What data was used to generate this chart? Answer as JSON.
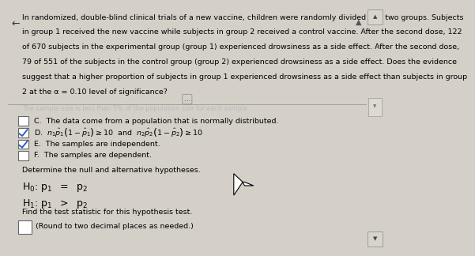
{
  "bg_color": "#d4d0c8",
  "panel_bg": "#e8e4dc",
  "text_color": "#000000",
  "title_text1": "In randomized, double-blind clinical trials of a new vaccine, children were randomly divided into two groups. Subjects",
  "title_text2": "in group 1 received the new vaccine while subjects in group 2 received a control vaccine. After the second dose, 122",
  "title_text3": "of 670 subjects in the experimental group (group 1) experienced drowsiness as a side effect. After the second dose,",
  "title_text4": "79 of 551 of the subjects in the control group (group 2) experienced drowsiness as a side effect. Does the evidence",
  "title_text5": "suggest that a higher proportion of subjects in group 1 experienced drowsiness as a side effect than subjects in group",
  "title_text6": "2 at the α = 0.10 level of significance?",
  "dotted_line_text": "...",
  "faded_line": "The sample size is less than 5% of the population size for each sample.",
  "option_C_text": "The data come from a population that is normally distributed.",
  "option_E_text": "The samples are independent.",
  "option_F_text": "The samples are dependent.",
  "determine_text": "Determine the null and alternative hypotheses.",
  "find_text": "Find the test statistic for this hypothesis test.",
  "round_text": "(Round to two decimal places as needed.)"
}
